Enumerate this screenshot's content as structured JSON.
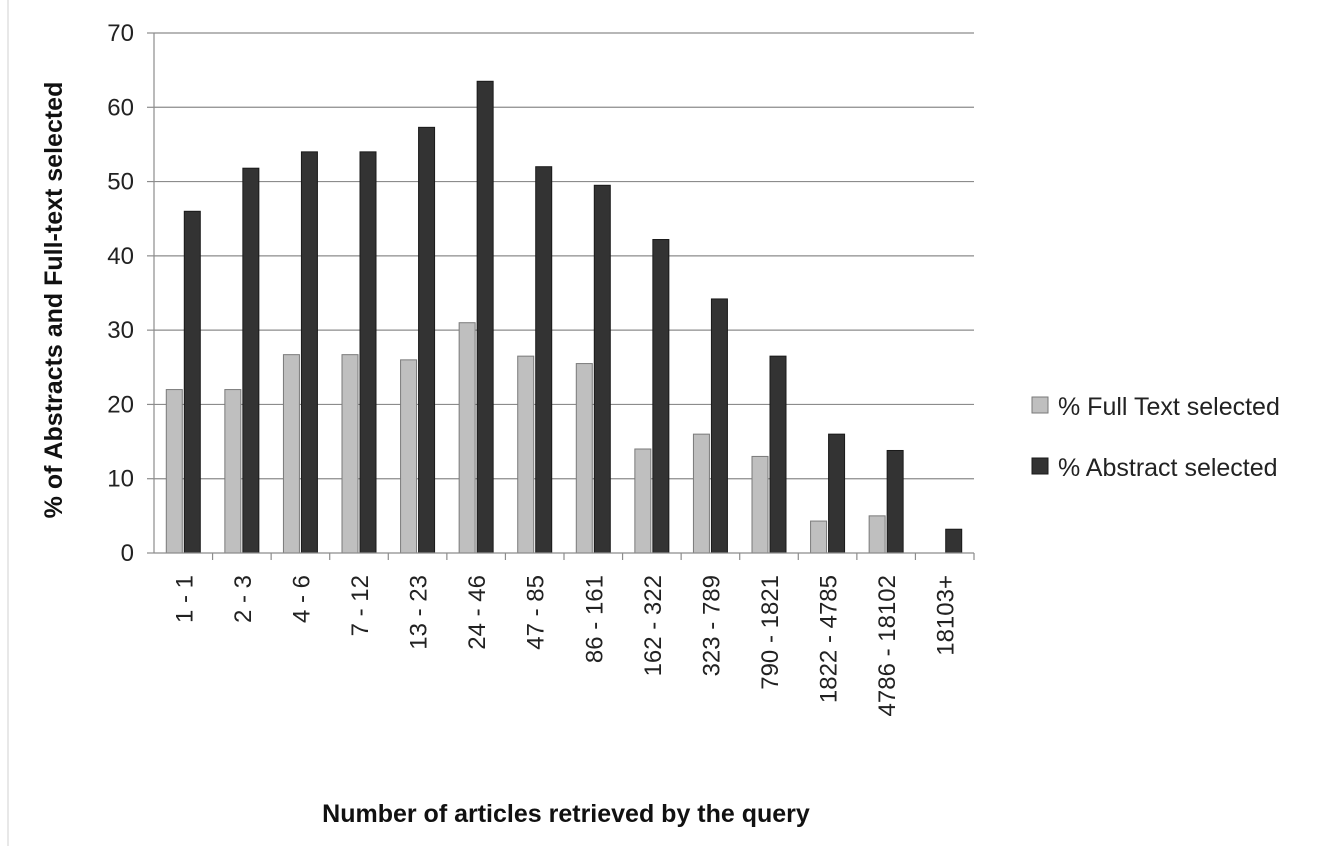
{
  "chart_data": {
    "type": "bar",
    "title": "",
    "xlabel": "Number of articles retrieved by the query",
    "ylabel": "% of Abstracts and Full-text selected",
    "ylim": [
      0,
      70
    ],
    "ytick_step": 10,
    "grid": true,
    "legend_position": "right",
    "categories": [
      "1 - 1",
      "2 - 3",
      "4 - 6",
      "7 - 12",
      "13 - 23",
      "24 - 46",
      "47 - 85",
      "86 - 161",
      "162 - 322",
      "323 - 789",
      "790 - 1821",
      "1822 - 4785",
      "4786 - 18102",
      "18103+"
    ],
    "series": [
      {
        "name": "% Full Text selected",
        "color": "#bfbfbf",
        "values": [
          22,
          22,
          26.7,
          26.7,
          26,
          31,
          26.5,
          25.5,
          14,
          16,
          13,
          4.3,
          5,
          0
        ]
      },
      {
        "name": "% Abstract selected",
        "color": "#333333",
        "values": [
          46,
          51.8,
          54,
          54,
          57.3,
          63.5,
          52,
          49.5,
          42.2,
          34.2,
          26.5,
          16,
          13.8,
          3.2
        ]
      }
    ]
  }
}
